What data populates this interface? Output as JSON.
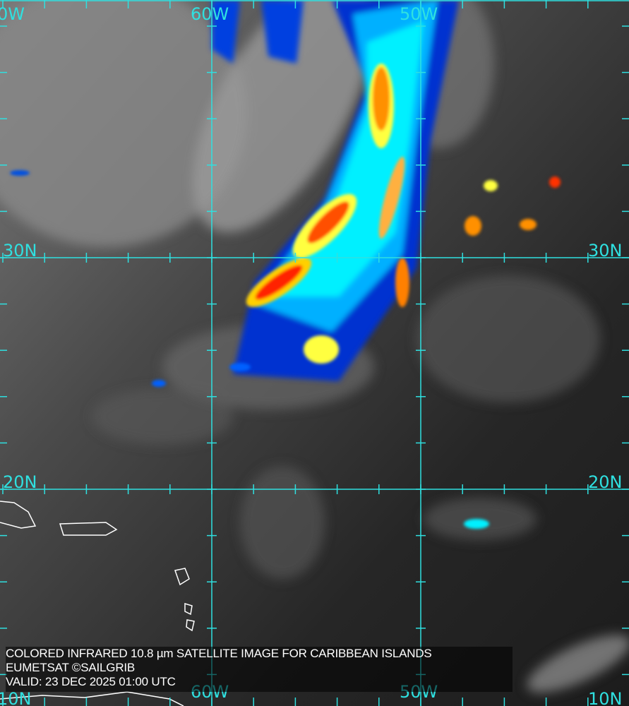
{
  "map": {
    "grid_color": "#2fe0e0",
    "longitude_labels": [
      "0W",
      "60W",
      "50W"
    ],
    "bottom_longitude_labels": [
      "10N",
      "60W",
      "50W",
      "10N"
    ],
    "latitude_labels": {
      "left": [
        "30N",
        "20N"
      ],
      "right": [
        "30N",
        "20N"
      ]
    },
    "colormap": [
      "#0000c8",
      "#0060ff",
      "#00e0ff",
      "#ffff00",
      "#ff9000",
      "#ff2000"
    ]
  },
  "caption": {
    "line1": "COLORED INFRARED 10.8 µm SATELLITE IMAGE FOR CARIBBEAN ISLANDS",
    "line2": "EUMETSAT ©SAILGRIB",
    "line3": "VALID:  23 DEC 2025 01:00 UTC"
  }
}
